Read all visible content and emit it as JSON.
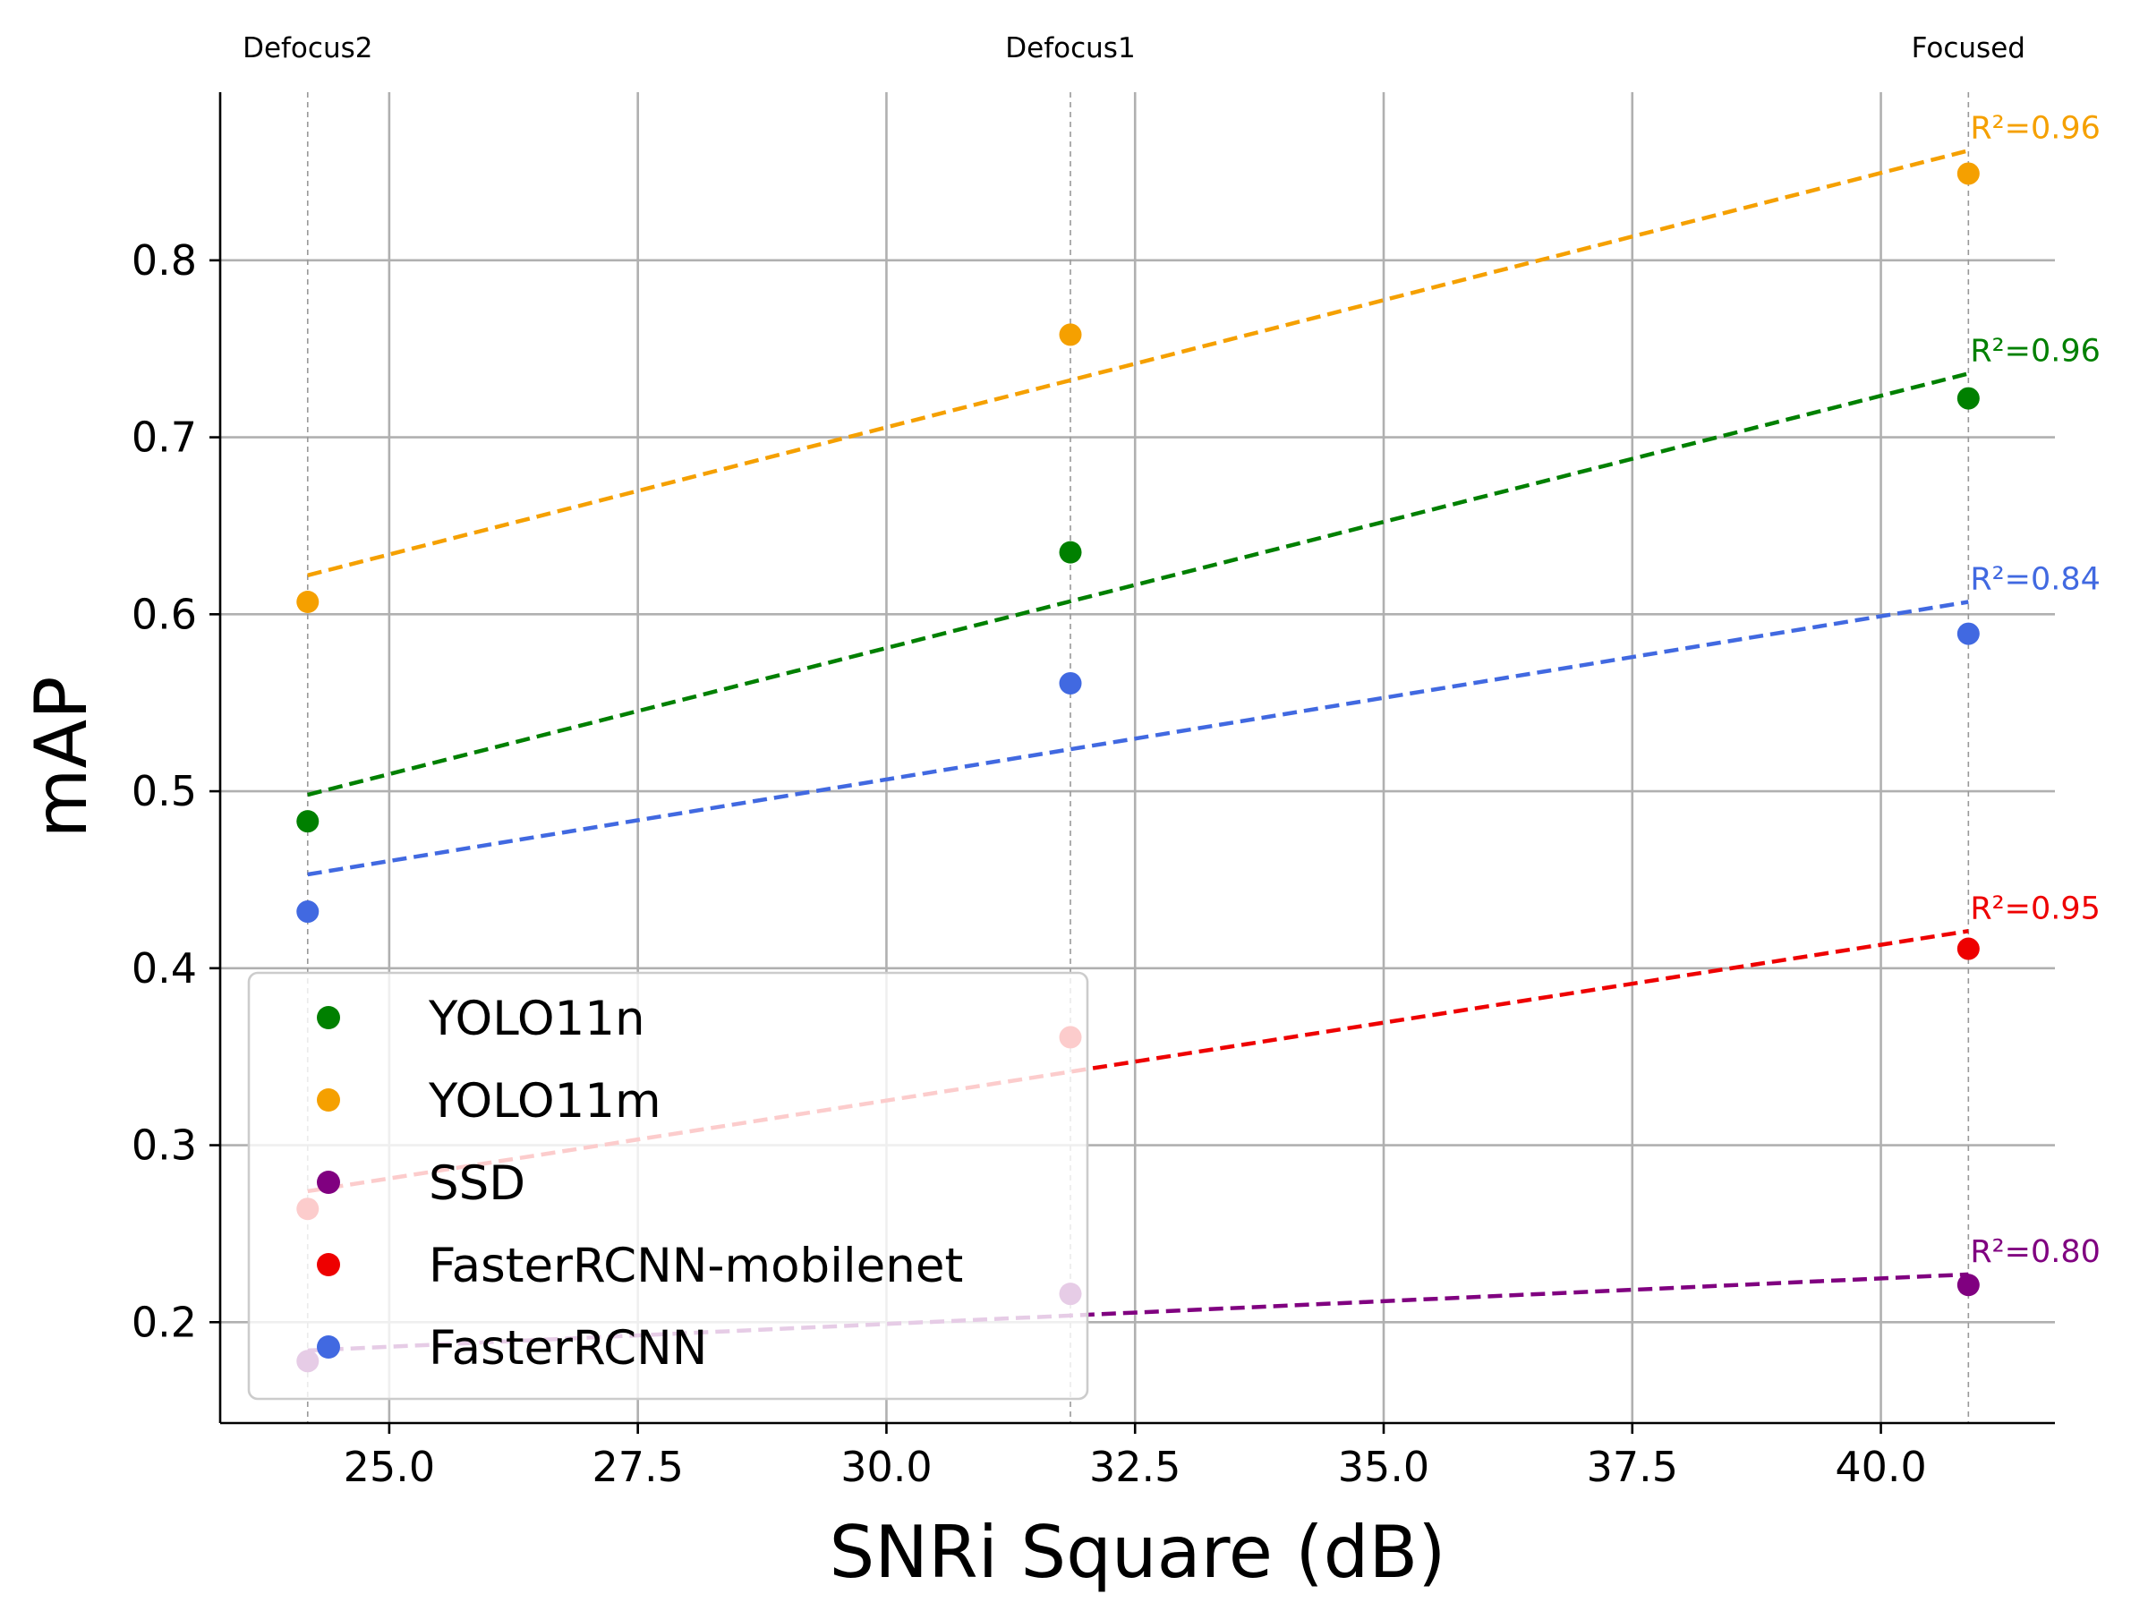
{
  "chart_data": {
    "type": "scatter",
    "xlabel": "SNRi Square (dB)",
    "ylabel": "mAP",
    "xlim": [
      23.3,
      41.75
    ],
    "ylim": [
      0.143,
      0.895
    ],
    "xticks": [
      "25.0",
      "27.5",
      "30.0",
      "32.5",
      "35.0",
      "37.5",
      "40.0"
    ],
    "yticks": [
      "0.2",
      "0.3",
      "0.4",
      "0.5",
      "0.6",
      "0.7",
      "0.8"
    ],
    "grid": true,
    "legend_position": "lower-left",
    "conditions": [
      {
        "label": "Defocus2",
        "x": 24.18
      },
      {
        "label": "Defocus1",
        "x": 31.85
      },
      {
        "label": "Focused",
        "x": 40.88
      }
    ],
    "x": [
      24.18,
      31.85,
      40.88
    ],
    "series": [
      {
        "name": "YOLO11n",
        "color": "#008000",
        "values": [
          0.483,
          0.635,
          0.722
        ],
        "fit": [
          0.498,
          0.736
        ],
        "r2_label": "R²=0.96"
      },
      {
        "name": "YOLO11m",
        "color": "#f5a000",
        "values": [
          0.607,
          0.758,
          0.849
        ],
        "fit": [
          0.622,
          0.862
        ],
        "r2_label": "R²=0.96"
      },
      {
        "name": "SSD",
        "color": "#800080",
        "values": [
          0.178,
          0.216,
          0.221
        ],
        "fit": [
          0.184,
          0.227
        ],
        "r2_label": "R²=0.80"
      },
      {
        "name": "FasterRCNN-mobilenet",
        "color": "#ee0000",
        "values": [
          0.264,
          0.361,
          0.411
        ],
        "fit": [
          0.274,
          0.421
        ],
        "r2_label": "R²=0.95"
      },
      {
        "name": "FasterRCNN",
        "color": "#4169e1",
        "values": [
          0.432,
          0.561,
          0.589
        ],
        "fit": [
          0.453,
          0.607
        ],
        "r2_label": "R²=0.84"
      }
    ]
  }
}
